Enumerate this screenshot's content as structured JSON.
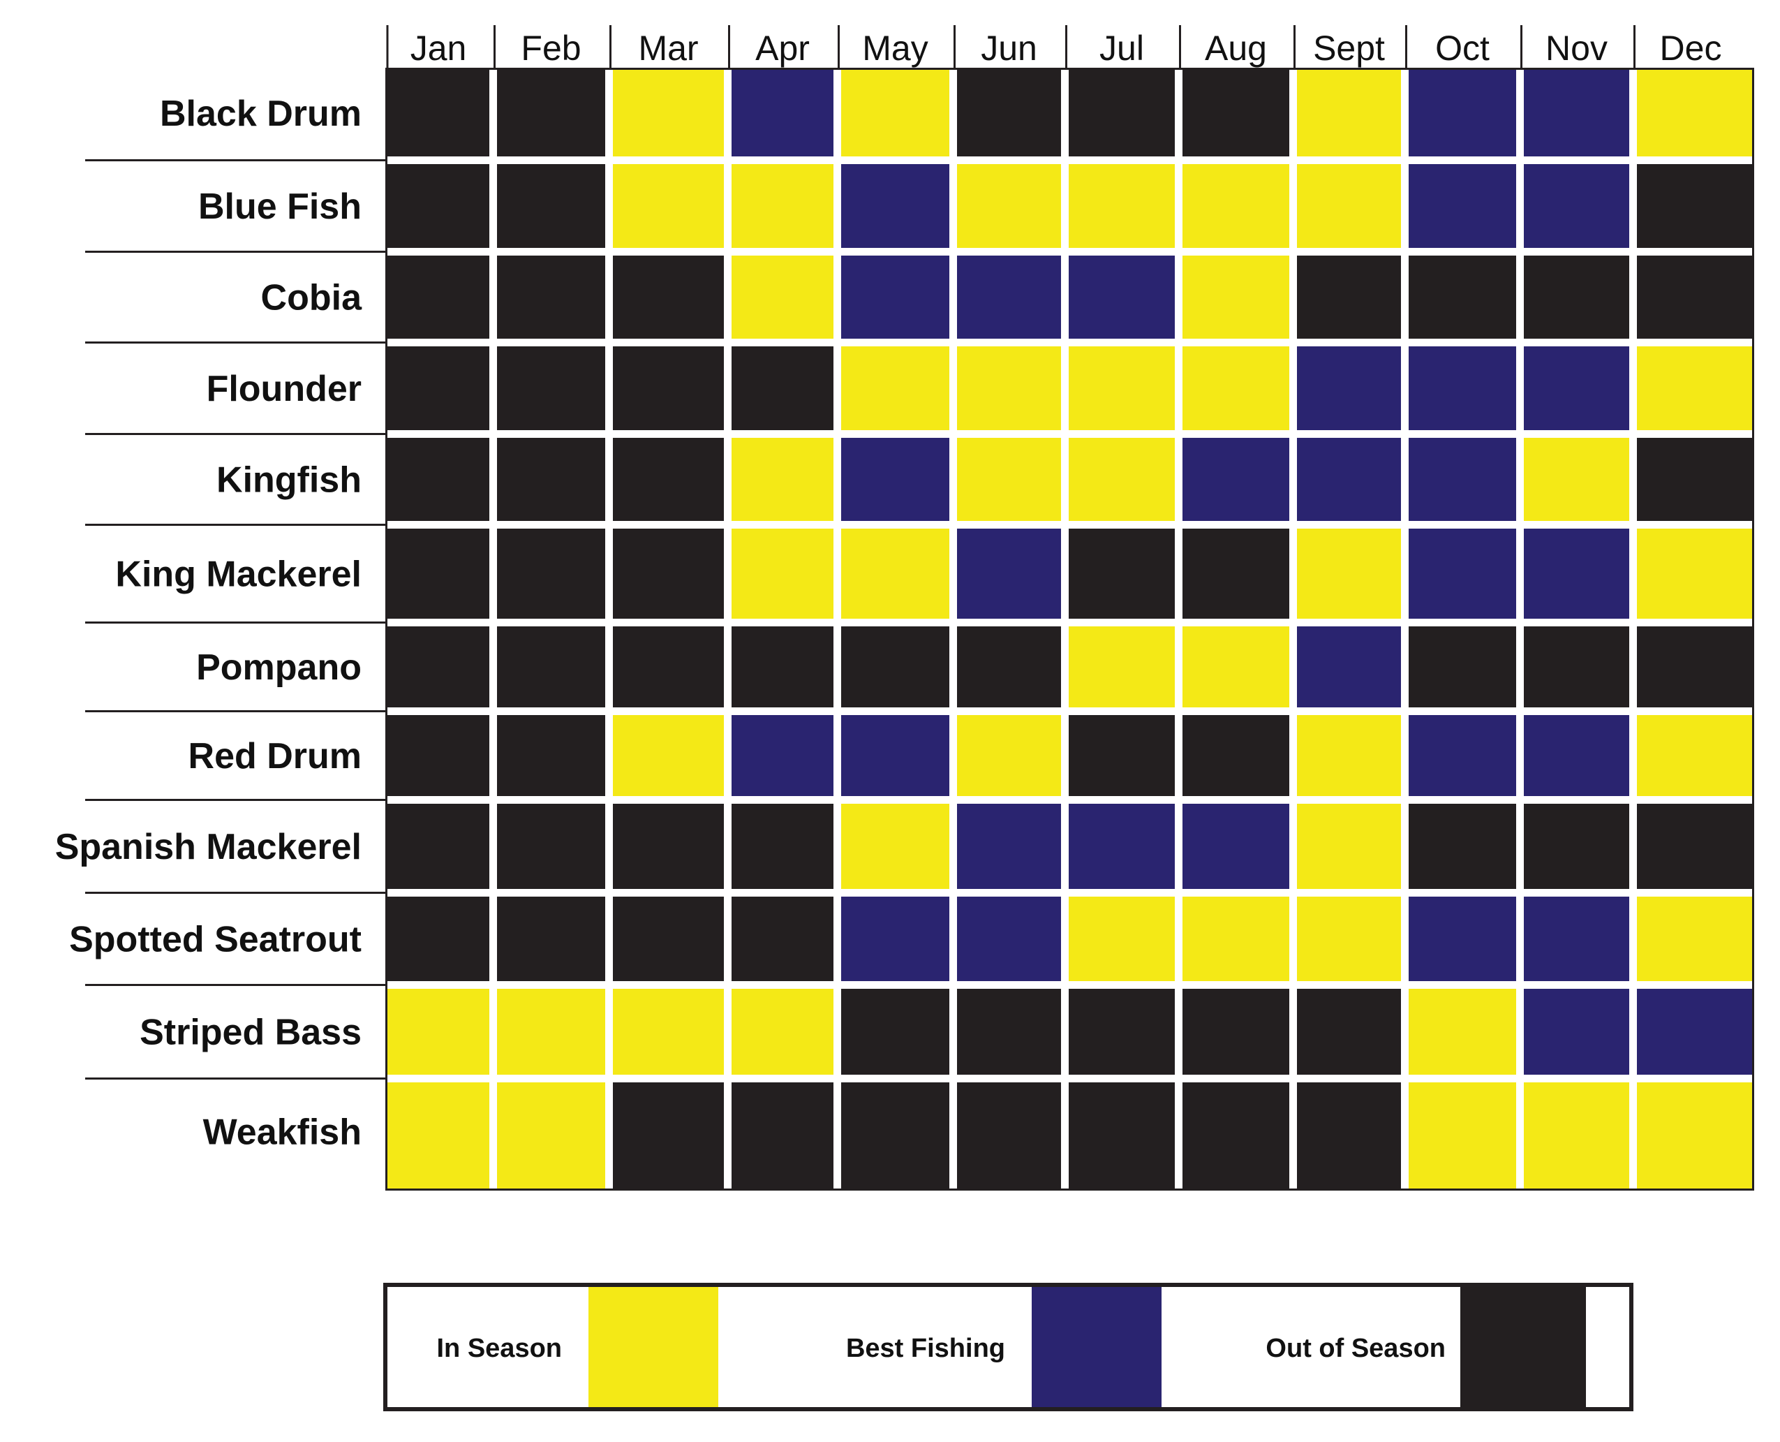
{
  "chart_data": {
    "type": "heatmap",
    "columns": [
      "Jan",
      "Feb",
      "Mar",
      "Apr",
      "May",
      "Jun",
      "Jul",
      "Aug",
      "Sept",
      "Oct",
      "Nov",
      "Dec"
    ],
    "rows": [
      "Black Drum",
      "Blue Fish",
      "Cobia",
      "Flounder",
      "Kingfish",
      "King Mackerel",
      "Pompano",
      "Red Drum",
      "Spanish Mackerel",
      "Spotted Seatrout",
      "Striped Bass",
      "Weakfish"
    ],
    "categories": {
      "Y": {
        "label": "In Season",
        "color": "#f4e916"
      },
      "B": {
        "label": "Best Fishing",
        "color": "#2a2470"
      },
      "K": {
        "label": "Out of Season",
        "color": "#231f20"
      }
    },
    "values": [
      [
        "K",
        "K",
        "Y",
        "B",
        "Y",
        "K",
        "K",
        "K",
        "Y",
        "B",
        "B",
        "Y"
      ],
      [
        "K",
        "K",
        "Y",
        "Y",
        "B",
        "Y",
        "Y",
        "Y",
        "Y",
        "B",
        "B",
        "K"
      ],
      [
        "K",
        "K",
        "K",
        "Y",
        "B",
        "B",
        "B",
        "Y",
        "K",
        "K",
        "K",
        "K"
      ],
      [
        "K",
        "K",
        "K",
        "K",
        "Y",
        "Y",
        "Y",
        "Y",
        "B",
        "B",
        "B",
        "Y"
      ],
      [
        "K",
        "K",
        "K",
        "Y",
        "B",
        "Y",
        "Y",
        "B",
        "B",
        "B",
        "Y",
        "K"
      ],
      [
        "K",
        "K",
        "K",
        "Y",
        "Y",
        "B",
        "K",
        "K",
        "Y",
        "B",
        "B",
        "Y"
      ],
      [
        "K",
        "K",
        "K",
        "K",
        "K",
        "K",
        "Y",
        "Y",
        "B",
        "K",
        "K",
        "K"
      ],
      [
        "K",
        "K",
        "Y",
        "B",
        "B",
        "Y",
        "K",
        "K",
        "Y",
        "B",
        "B",
        "Y"
      ],
      [
        "K",
        "K",
        "K",
        "K",
        "Y",
        "B",
        "B",
        "B",
        "Y",
        "K",
        "K",
        "K"
      ],
      [
        "K",
        "K",
        "K",
        "K",
        "B",
        "B",
        "Y",
        "Y",
        "Y",
        "B",
        "B",
        "Y"
      ],
      [
        "Y",
        "Y",
        "Y",
        "Y",
        "K",
        "K",
        "K",
        "K",
        "K",
        "Y",
        "B",
        "B"
      ],
      [
        "Y",
        "Y",
        "K",
        "K",
        "K",
        "K",
        "K",
        "K",
        "K",
        "Y",
        "Y",
        "Y"
      ]
    ],
    "legend": {
      "placement": "bottom",
      "items": [
        "Y",
        "B",
        "K"
      ]
    }
  }
}
